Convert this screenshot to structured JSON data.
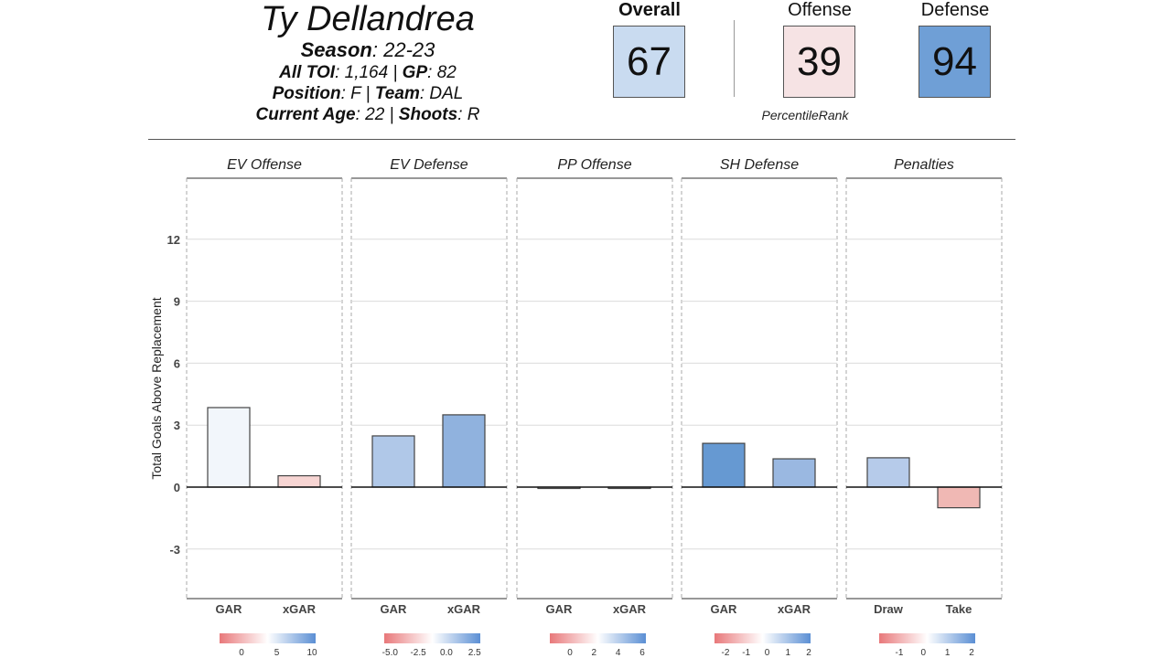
{
  "player": {
    "name": "Ty Dellandrea",
    "season_label": "Season",
    "season": "22-23",
    "toi_label": "All TOI",
    "toi": "1,164",
    "gp_label": "GP",
    "gp": "82",
    "position_label": "Position",
    "position": "F",
    "team_label": "Team",
    "team": "DAL",
    "age_label": "Current Age",
    "age": "22",
    "shoots_label": "Shoots",
    "shoots": "R"
  },
  "scores": {
    "overall": {
      "label": "Overall",
      "value": "67",
      "color": "#c9dbf0"
    },
    "offense": {
      "label": "Offense",
      "value": "39",
      "color": "#f6e3e4"
    },
    "defense": {
      "label": "Defense",
      "value": "94",
      "color": "#6f9fd6"
    },
    "caption": "PercentileRank"
  },
  "chart_data": {
    "type": "bar",
    "ylabel": "Total Goals Above Replacement",
    "ylim": [
      -5.5,
      15.5
    ],
    "yticks": [
      -3,
      0,
      3,
      6,
      9,
      12
    ],
    "grid": true,
    "panels": [
      {
        "title": "EV Offense",
        "categories": [
          "GAR",
          "xGAR"
        ],
        "values": [
          3.85,
          0.55
        ],
        "colors": [
          "#f2f6fb",
          "#f7d5d3"
        ],
        "legend": {
          "ticks": [
            "0",
            "5",
            "10"
          ]
        }
      },
      {
        "title": "EV Defense",
        "categories": [
          "GAR",
          "xGAR"
        ],
        "values": [
          2.48,
          3.5
        ],
        "colors": [
          "#b0c8e8",
          "#90b2de"
        ],
        "legend": {
          "ticks": [
            "-5.0",
            "-2.5",
            "0.0",
            "2.5"
          ]
        }
      },
      {
        "title": "PP Offense",
        "categories": [
          "GAR",
          "xGAR"
        ],
        "values": [
          0.0,
          -0.06
        ],
        "colors": [
          "#f7f7f7",
          "#eeeeee"
        ],
        "legend": {
          "ticks": [
            "0",
            "2",
            "4",
            "6"
          ]
        }
      },
      {
        "title": "SH Defense",
        "categories": [
          "GAR",
          "xGAR"
        ],
        "values": [
          2.12,
          1.37
        ],
        "colors": [
          "#6699d2",
          "#9ab8e1"
        ],
        "legend": {
          "ticks": [
            "-2",
            "-1",
            "0",
            "1",
            "2"
          ]
        }
      },
      {
        "title": "Penalties",
        "categories": [
          "Draw",
          "Take"
        ],
        "values": [
          1.42,
          -1.0
        ],
        "colors": [
          "#b6cbea",
          "#f0b8b4"
        ],
        "legend": {
          "ticks": [
            "-1",
            "0",
            "1",
            "2"
          ]
        }
      }
    ]
  }
}
